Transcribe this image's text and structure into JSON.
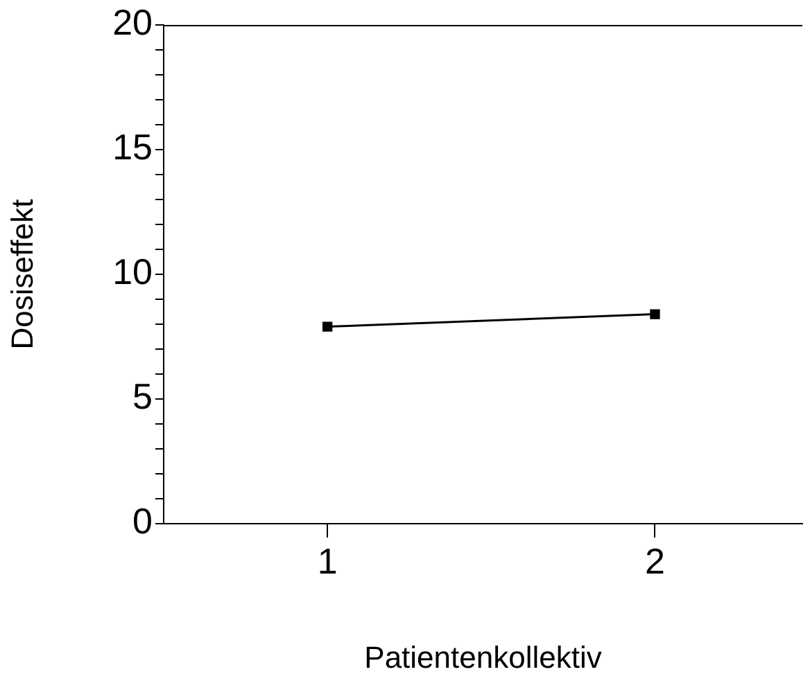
{
  "chart_data": {
    "type": "line",
    "xlabel": "Patientenkollektiv",
    "ylabel": "Dosiseffekt",
    "x": [
      1,
      2
    ],
    "series": [
      {
        "color": "#000000",
        "values": [
          7.9,
          8.4
        ]
      }
    ],
    "xlim": [
      0.5,
      2.45
    ],
    "xticks": [
      1,
      2
    ],
    "ylim": [
      0,
      20
    ],
    "yticks": [
      0,
      {
        "value": 1,
        "label": null
      },
      {
        "value": 2,
        "label": null
      },
      {
        "value": 3,
        "label": null
      },
      {
        "value": 4,
        "label": null
      },
      5,
      {
        "value": 6,
        "label": null
      },
      {
        "value": 7,
        "label": null
      },
      {
        "value": 8,
        "label": null
      },
      {
        "value": 9,
        "label": null
      },
      10,
      {
        "value": 11,
        "label": null
      },
      {
        "value": 12,
        "label": null
      },
      {
        "value": 13,
        "label": null
      },
      {
        "value": 14,
        "label": null
      },
      15,
      {
        "value": 16,
        "label": null
      },
      {
        "value": 17,
        "label": null
      },
      {
        "value": 18,
        "label": null
      },
      {
        "value": 19,
        "label": null
      },
      20
    ],
    "grid": false,
    "legend": false,
    "marker": "square",
    "line_style": "solid"
  }
}
